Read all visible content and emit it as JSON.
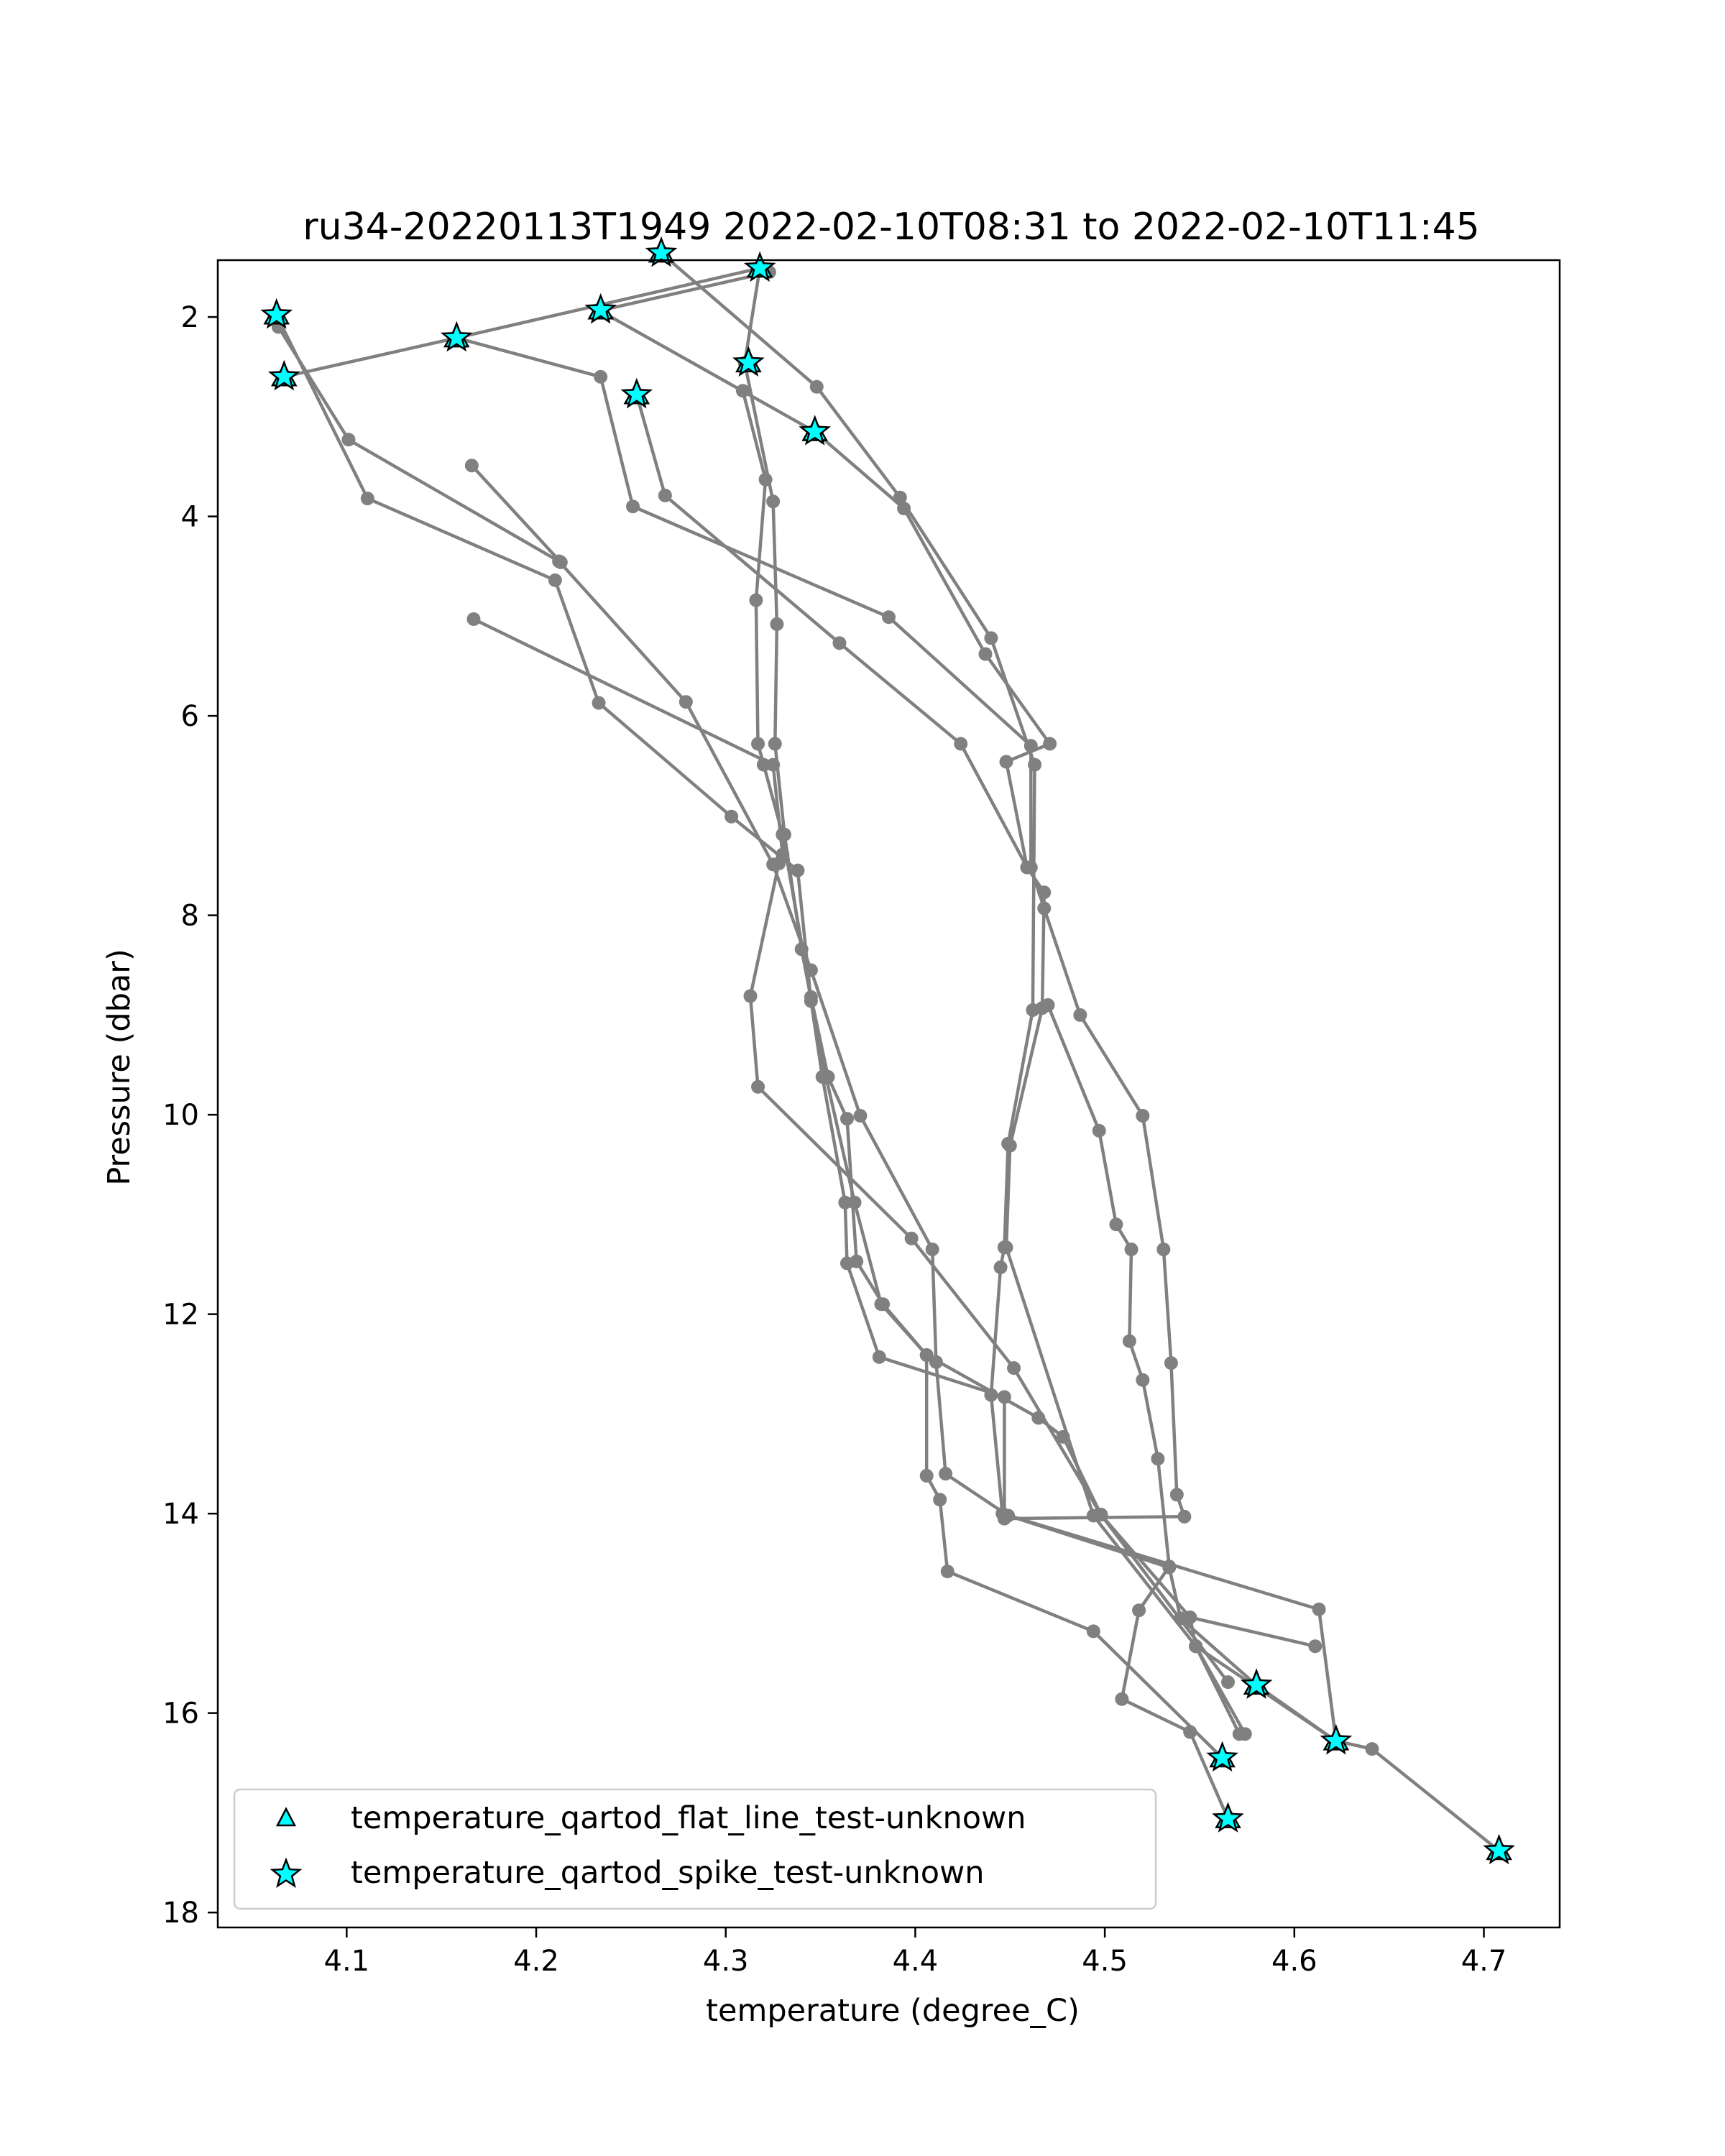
{
  "chart_data": {
    "type": "scatter",
    "title": "ru34-20220113T1949 2022-02-10T08:31 to 2022-02-10T11:45",
    "xlabel": "temperature (degree_C)",
    "ylabel": "Pressure (dbar)",
    "xlim": [
      4.032,
      4.74
    ],
    "ylim": [
      18.15,
      1.43
    ],
    "y_inverted": true,
    "xticks": [
      4.1,
      4.2,
      4.3,
      4.4,
      4.5,
      4.6,
      4.7
    ],
    "yticks": [
      2,
      4,
      6,
      8,
      10,
      12,
      14,
      16,
      18
    ],
    "xtick_labels": [
      "4.1",
      "4.2",
      "4.3",
      "4.4",
      "4.5",
      "4.6",
      "4.7"
    ],
    "ytick_labels": [
      "2",
      "4",
      "6",
      "8",
      "10",
      "12",
      "14",
      "16",
      "18"
    ],
    "grid": false,
    "profile_color": "#808080",
    "marker_color": "#00ffff",
    "legend": {
      "position": "lower-left",
      "entries": [
        {
          "label": "temperature_qartod_flat_line_test-unknown",
          "marker": "triangle"
        },
        {
          "label": "temperature_qartod_spike_test-unknown",
          "marker": "star"
        }
      ]
    },
    "profiles": [
      {
        "points": [
          [
            4.064,
            2.1
          ],
          [
            4.101,
            3.23
          ],
          [
            4.212,
            4.45
          ],
          [
            4.279,
            5.86
          ],
          [
            4.325,
            7.49
          ],
          [
            4.345,
            8.55
          ],
          [
            4.371,
            10.01
          ],
          [
            4.409,
            11.35
          ],
          [
            4.411,
            12.48
          ],
          [
            4.416,
            13.6
          ],
          [
            4.449,
            14.02
          ],
          [
            4.534,
            14.54
          ],
          [
            4.54,
            15.05
          ],
          [
            4.58,
            15.72
          ],
          [
            4.622,
            16.28
          ],
          [
            4.641,
            16.36
          ],
          [
            4.708,
            17.38
          ]
        ]
      },
      {
        "points": [
          [
            4.063,
            1.98
          ],
          [
            4.111,
            3.82
          ],
          [
            4.21,
            4.64
          ],
          [
            4.233,
            5.87
          ],
          [
            4.303,
            7.01
          ],
          [
            4.338,
            7.55
          ],
          [
            4.345,
            8.86
          ],
          [
            4.351,
            9.62
          ],
          [
            4.363,
            10.88
          ],
          [
            4.364,
            11.49
          ],
          [
            4.381,
            12.43
          ],
          [
            4.447,
            12.83
          ],
          [
            4.447,
            14.05
          ],
          [
            4.542,
            14.03
          ],
          [
            4.538,
            13.81
          ],
          [
            4.535,
            12.49
          ],
          [
            4.531,
            11.35
          ],
          [
            4.52,
            10.01
          ],
          [
            4.487,
            9.0
          ],
          [
            4.468,
            7.93
          ],
          [
            4.461,
            7.52
          ],
          [
            4.461,
            6.3
          ],
          [
            4.386,
            5.01
          ],
          [
            4.251,
            3.9
          ],
          [
            4.234,
            2.6
          ],
          [
            4.158,
            2.21
          ],
          [
            4.067,
            2.6
          ]
        ]
      },
      {
        "points": [
          [
            4.167,
            5.03
          ],
          [
            4.325,
            6.49
          ],
          [
            4.33,
            7.39
          ],
          [
            4.328,
            7.48
          ],
          [
            4.313,
            8.81
          ],
          [
            4.317,
            9.72
          ],
          [
            4.398,
            11.24
          ],
          [
            4.452,
            12.54
          ],
          [
            4.498,
            14.01
          ],
          [
            4.565,
            15.69
          ]
        ]
      },
      {
        "points": [
          [
            4.266,
            1.36
          ],
          [
            4.348,
            2.7
          ],
          [
            4.392,
            3.81
          ],
          [
            4.44,
            5.22
          ],
          [
            4.463,
            6.49
          ],
          [
            4.462,
            8.95
          ],
          [
            4.449,
            10.29
          ],
          [
            4.447,
            11.33
          ],
          [
            4.445,
            11.53
          ],
          [
            4.44,
            12.81
          ],
          [
            4.446,
            14.0
          ],
          [
            4.613,
            14.96
          ],
          [
            4.622,
            16.28
          ]
        ]
      },
      {
        "points": [
          [
            4.158,
            2.21
          ],
          [
            4.318,
            1.51
          ],
          [
            4.31,
            2.46
          ],
          [
            4.325,
            3.85
          ],
          [
            4.327,
            5.08
          ],
          [
            4.326,
            6.28
          ],
          [
            4.331,
            7.19
          ],
          [
            4.34,
            8.34
          ],
          [
            4.353,
            9.63
          ],
          [
            4.368,
            10.88
          ],
          [
            4.382,
            11.9
          ],
          [
            4.406,
            12.41
          ],
          [
            4.406,
            13.62
          ],
          [
            4.413,
            13.86
          ],
          [
            4.417,
            14.58
          ],
          [
            4.494,
            15.18
          ],
          [
            4.562,
            16.45
          ]
        ]
      },
      {
        "points": [
          [
            4.166,
            3.49
          ],
          [
            4.213,
            4.46
          ]
        ]
      },
      {
        "points": [
          [
            4.233,
            1.93
          ],
          [
            4.347,
            3.15
          ],
          [
            4.394,
            3.92
          ],
          [
            4.437,
            5.38
          ],
          [
            4.471,
            6.28
          ],
          [
            4.448,
            6.46
          ],
          [
            4.459,
            7.52
          ],
          [
            4.468,
            7.77
          ],
          [
            4.467,
            8.93
          ],
          [
            4.45,
            10.31
          ],
          [
            4.448,
            11.33
          ],
          [
            4.494,
            14.02
          ],
          [
            4.548,
            15.33
          ],
          [
            4.571,
            16.21
          ]
        ]
      },
      {
        "points": [
          [
            4.235,
            1.93
          ],
          [
            4.323,
            1.55
          ]
        ]
      },
      {
        "points": [
          [
            4.253,
            2.78
          ],
          [
            4.268,
            3.79
          ],
          [
            4.36,
            5.27
          ],
          [
            4.424,
            6.28
          ],
          [
            4.459,
            7.52
          ]
        ]
      },
      {
        "points": [
          [
            4.309,
            2.74
          ],
          [
            4.321,
            3.63
          ],
          [
            4.316,
            4.84
          ],
          [
            4.317,
            6.28
          ],
          [
            4.32,
            6.49
          ],
          [
            4.33,
            7.19
          ],
          [
            4.345,
            8.82
          ],
          [
            4.354,
            9.62
          ],
          [
            4.364,
            10.04
          ],
          [
            4.369,
            11.47
          ],
          [
            4.383,
            11.9
          ],
          [
            4.406,
            12.41
          ],
          [
            4.465,
            13.04
          ],
          [
            4.478,
            13.23
          ],
          [
            4.498,
            14.01
          ],
          [
            4.545,
            15.04
          ],
          [
            4.548,
            15.33
          ],
          [
            4.622,
            16.28
          ]
        ]
      },
      {
        "points": [
          [
            4.545,
            16.19
          ],
          [
            4.509,
            15.86
          ],
          [
            4.518,
            14.97
          ],
          [
            4.534,
            14.53
          ],
          [
            4.528,
            13.45
          ],
          [
            4.52,
            12.66
          ],
          [
            4.513,
            12.27
          ],
          [
            4.514,
            11.35
          ],
          [
            4.506,
            11.1
          ],
          [
            4.497,
            10.16
          ],
          [
            4.47,
            8.9
          ]
        ]
      },
      {
        "points": [
          [
            4.611,
            15.33
          ],
          [
            4.545,
            15.04
          ]
        ]
      },
      {
        "points": [
          [
            4.565,
            17.06
          ],
          [
            4.545,
            16.19
          ]
        ]
      },
      {
        "points": [
          [
            4.574,
            16.21
          ],
          [
            4.548,
            15.33
          ]
        ]
      }
    ],
    "spike_flags": [
      [
        4.063,
        1.98
      ],
      [
        4.067,
        2.6
      ],
      [
        4.158,
        2.21
      ],
      [
        4.234,
        1.93
      ],
      [
        4.253,
        2.78
      ],
      [
        4.266,
        1.36
      ],
      [
        4.318,
        1.51
      ],
      [
        4.312,
        2.46
      ],
      [
        4.347,
        3.15
      ],
      [
        4.58,
        15.72
      ],
      [
        4.622,
        16.28
      ],
      [
        4.562,
        16.45
      ],
      [
        4.565,
        17.06
      ],
      [
        4.708,
        17.38
      ]
    ],
    "flat_line_flags": [
      [
        4.063,
        1.98
      ],
      [
        4.067,
        2.6
      ],
      [
        4.158,
        2.21
      ],
      [
        4.234,
        1.93
      ],
      [
        4.253,
        2.78
      ],
      [
        4.266,
        1.36
      ],
      [
        4.318,
        1.51
      ],
      [
        4.312,
        2.46
      ],
      [
        4.347,
        3.15
      ],
      [
        4.58,
        15.72
      ],
      [
        4.622,
        16.28
      ],
      [
        4.562,
        16.45
      ],
      [
        4.565,
        17.06
      ],
      [
        4.708,
        17.38
      ]
    ]
  }
}
